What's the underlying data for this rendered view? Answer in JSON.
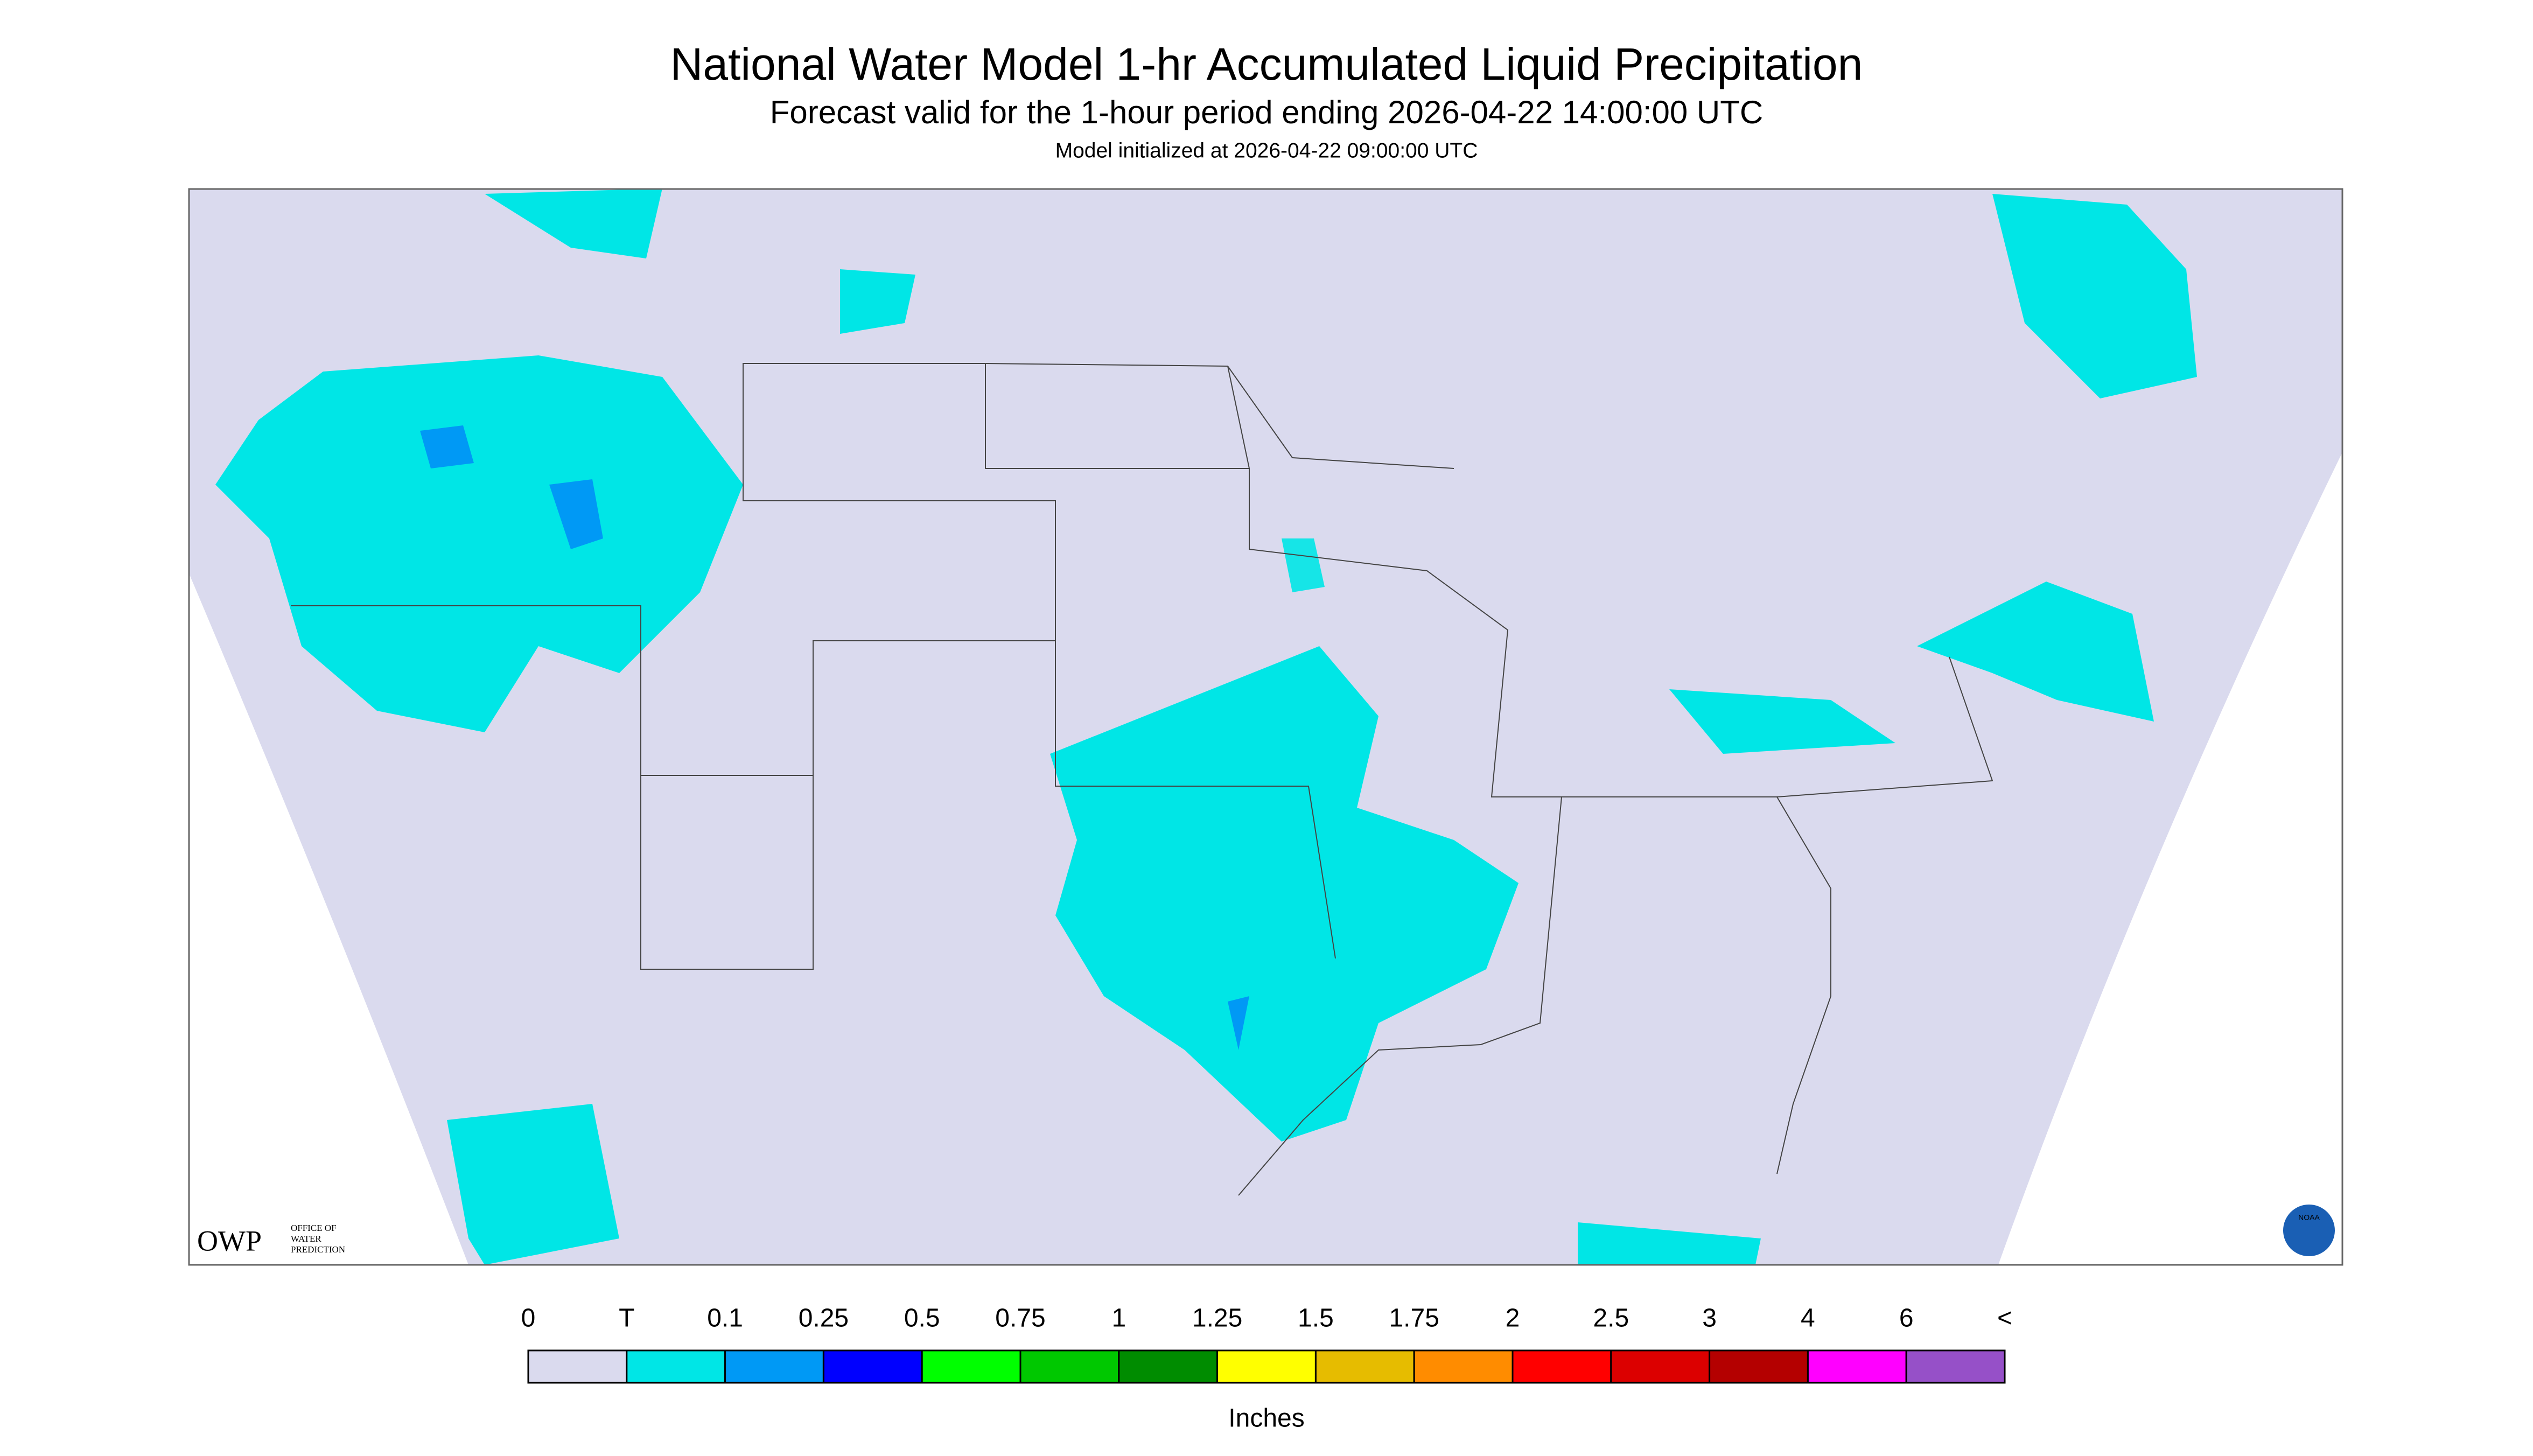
{
  "header": {
    "title": "National Water Model 1-hr Accumulated Liquid Precipitation",
    "subtitle": "Forecast valid for the 1-hour period ending 2026-04-22 14:00:00 UTC",
    "note": "Model initialized at 2026-04-22 09:00:00 UTC"
  },
  "logo": {
    "name": "OWP",
    "lines": [
      "OFFICE OF",
      "WATER",
      "PREDICTION"
    ],
    "badge": "NOAA"
  },
  "legend": {
    "labels": [
      "0",
      "T",
      "0.1",
      "0.25",
      "0.5",
      "0.75",
      "1",
      "1.25",
      "1.5",
      "1.75",
      "2",
      "2.5",
      "3",
      "4",
      "6",
      "<"
    ],
    "colors": [
      "#dadaee",
      "#00e6e6",
      "#0099f5",
      "#0000ff",
      "#00ff00",
      "#00c800",
      "#008c00",
      "#ffff00",
      "#e6bc00",
      "#ff8c00",
      "#ff0000",
      "#dc0000",
      "#b40000",
      "#ff00ff",
      "#9650c8"
    ],
    "unit": "Inches"
  }
}
